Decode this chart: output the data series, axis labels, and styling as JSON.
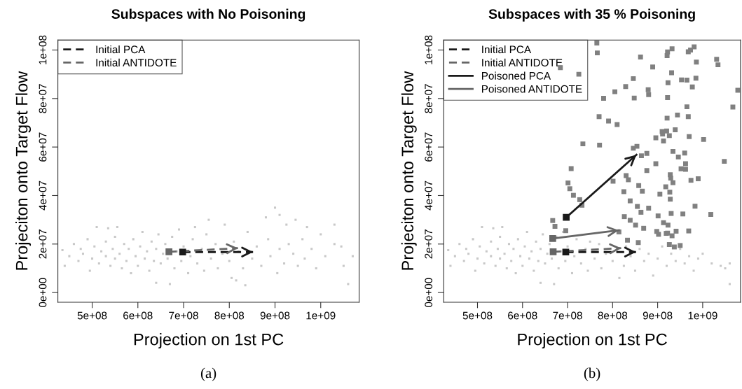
{
  "chart_data": [
    {
      "type": "scatter",
      "title": "Subspaces with No Poisoning",
      "xlabel": "Projection on 1st PC",
      "ylabel": "Projeciton onto Target Flow",
      "annotations": [
        "(a)"
      ],
      "xlim": [
        425000000.0,
        1084000000.0
      ],
      "ylim": [
        -4000000.0,
        104100000.0
      ],
      "xticks": [
        {
          "value": 500000000.0,
          "label": "5e+08"
        },
        {
          "value": 600000000.0,
          "label": "6e+08"
        },
        {
          "value": 700000000.0,
          "label": "7e+08"
        },
        {
          "value": 800000000.0,
          "label": "8e+08"
        },
        {
          "value": 900000000.0,
          "label": "9e+08"
        },
        {
          "value": 1000000000.0,
          "label": "1e+09"
        }
      ],
      "yticks": [
        {
          "value": 0,
          "label": "0e+00"
        },
        {
          "value": 20000000.0,
          "label": "2e+07"
        },
        {
          "value": 40000000.0,
          "label": "4e+07"
        },
        {
          "value": 60000000.0,
          "label": "6e+07"
        },
        {
          "value": 80000000.0,
          "label": "8e+07"
        },
        {
          "value": 100000000.0,
          "label": "1e+08"
        }
      ],
      "grid": false,
      "legend": "top left",
      "series": [
        {
          "marker": "square",
          "color": "#c8c8c8",
          "x": [
            435000000.0,
            440000000.0,
            450000000.0,
            460000000.0,
            470000000.0,
            475000000.0,
            480000000.0,
            490000000.0,
            495000000.0,
            500000000.0,
            505000000.0,
            510000000.0,
            515000000.0,
            520000000.0,
            530000000.0,
            530000000.0,
            535000000.0,
            540000000.0,
            545000000.0,
            550000000.0,
            550000000.0,
            555000000.0,
            560000000.0,
            565000000.0,
            570000000.0,
            575000000.0,
            580000000.0,
            585000000.0,
            590000000.0,
            595000000.0,
            600000000.0,
            605000000.0,
            610000000.0,
            615000000.0,
            620000000.0,
            625000000.0,
            630000000.0,
            635000000.0,
            640000000.0,
            640000000.0,
            645000000.0,
            650000000.0,
            655000000.0,
            660000000.0,
            665000000.0,
            670000000.0,
            675000000.0,
            680000000.0,
            685000000.0,
            690000000.0,
            695000000.0,
            700000000.0,
            710000000.0,
            715000000.0,
            720000000.0,
            725000000.0,
            730000000.0,
            740000000.0,
            745000000.0,
            750000000.0,
            755000000.0,
            760000000.0,
            770000000.0,
            775000000.0,
            785000000.0,
            790000000.0,
            800000000.0,
            805000000.0,
            810000000.0,
            815000000.0,
            820000000.0,
            830000000.0,
            835000000.0,
            840000000.0,
            850000000.0,
            860000000.0,
            870000000.0,
            880000000.0,
            885000000.0,
            890000000.0,
            900000000.0,
            905000000.0,
            910000000.0,
            910000000.0,
            920000000.0,
            925000000.0,
            930000000.0,
            940000000.0,
            945000000.0,
            950000000.0,
            960000000.0,
            965000000.0,
            970000000.0,
            980000000.0,
            990000000.0,
            1000000000.0,
            1010000000.0,
            1030000000.0,
            1030000000.0,
            1045000000.0,
            1050000000.0,
            1060000000.0,
            1070000000.0
          ],
          "values": [
            17500000.0,
            11000000.0,
            15000000.0,
            20000000.0,
            13000000.0,
            18000000.0,
            16000000.0,
            22000000.0,
            9000000.0,
            14000000.0,
            19000000.0,
            27000000.0,
            12000000.0,
            17000000.0,
            15000000.0,
            21000000.0,
            26500000.0,
            11000000.0,
            18000000.0,
            14000000.0,
            23000000.0,
            27000000.0,
            16000000.0,
            10000000.0,
            20000000.0,
            13000000.0,
            18000000.0,
            8000000.0,
            22000000.0,
            15000000.0,
            11000000.0,
            19000000.0,
            25000000.0,
            14000000.0,
            17000000.0,
            9000000.0,
            21000000.0,
            13000000.0,
            4000000.0,
            18000000.0,
            24000000.0,
            12000000.0,
            16000000.0,
            20000000.0,
            14000000.0,
            3500000.0,
            23000000.0,
            10000000.0,
            17000000.0,
            26000000.0,
            13000000.0,
            19000000.0,
            8000000.0,
            15000000.0,
            22000000.0,
            27000000.0,
            12000000.0,
            18000000.0,
            9000000.0,
            24000000.0,
            30000000.0,
            14000000.0,
            20000000.0,
            10000000.0,
            16000000.0,
            28000000.0,
            13000000.0,
            6000000.0,
            21000000.0,
            5000000.0,
            17000000.0,
            10000000.0,
            3000000.0,
            25000000.0,
            14000000.0,
            19000000.0,
            11000000.0,
            31000000.0,
            22000000.0,
            15000000.0,
            35000000.0,
            8000000.0,
            18000000.0,
            32000000.0,
            12000000.0,
            28000000.0,
            20000000.0,
            16000000.0,
            30000000.0,
            11000000.0,
            22000000.0,
            14000000.0,
            27000000.0,
            18000000.0,
            10000000.0,
            24000000.0,
            15000000.0,
            28000000.0,
            20000000.0,
            19000000.0,
            11000000.0,
            3500000.0,
            15000000.0
          ]
        },
        {
          "type": "line",
          "name": "Initial PCA",
          "color": "#1a1a1a",
          "line_style": "dashed",
          "marker": "square",
          "x": [
            698000000.0,
            852000000.0
          ],
          "values": [
            16700000.0,
            16700000.0
          ]
        },
        {
          "type": "line",
          "name": "Initial ANTIDOTE",
          "color": "#666666",
          "line_style": "dashed",
          "marker": "square",
          "x": [
            668000000.0,
            819000000.0
          ],
          "values": [
            16800000.0,
            18300000.0
          ]
        }
      ]
    },
    {
      "type": "scatter",
      "title": "Subspaces with 35 % Poisoning",
      "xlabel": "Projection on 1st PC",
      "ylabel": "Projeciton onto Target Flow",
      "annotations": [
        "(b)"
      ],
      "xlim": [
        425000000.0,
        1084000000.0
      ],
      "ylim": [
        -4000000.0,
        104100000.0
      ],
      "xticks": [
        {
          "value": 500000000.0,
          "label": "5e+08"
        },
        {
          "value": 600000000.0,
          "label": "6e+08"
        },
        {
          "value": 700000000.0,
          "label": "7e+08"
        },
        {
          "value": 800000000.0,
          "label": "8e+08"
        },
        {
          "value": 900000000.0,
          "label": "9e+08"
        },
        {
          "value": 1000000000.0,
          "label": "1e+09"
        }
      ],
      "yticks": [
        {
          "value": 0,
          "label": "0e+00"
        },
        {
          "value": 20000000.0,
          "label": "2e+07"
        },
        {
          "value": 40000000.0,
          "label": "4e+07"
        },
        {
          "value": 60000000.0,
          "label": "6e+07"
        },
        {
          "value": 80000000.0,
          "label": "8e+07"
        },
        {
          "value": 100000000.0,
          "label": "1e+08"
        }
      ],
      "grid": false,
      "legend": "top left",
      "series": [
        {
          "marker": "square",
          "color": "#c8c8c8",
          "x": [
            435000000.0,
            440000000.0,
            450000000.0,
            460000000.0,
            470000000.0,
            475000000.0,
            480000000.0,
            490000000.0,
            495000000.0,
            500000000.0,
            505000000.0,
            510000000.0,
            515000000.0,
            520000000.0,
            530000000.0,
            530000000.0,
            535000000.0,
            540000000.0,
            545000000.0,
            550000000.0,
            550000000.0,
            555000000.0,
            560000000.0,
            565000000.0,
            570000000.0,
            575000000.0,
            580000000.0,
            585000000.0,
            590000000.0,
            595000000.0,
            600000000.0,
            605000000.0,
            610000000.0,
            615000000.0,
            620000000.0,
            625000000.0,
            630000000.0,
            635000000.0,
            640000000.0,
            640000000.0,
            645000000.0,
            650000000.0,
            655000000.0,
            660000000.0,
            665000000.0,
            670000000.0,
            675000000.0,
            680000000.0,
            685000000.0,
            690000000.0,
            695000000.0,
            700000000.0,
            710000000.0,
            715000000.0,
            720000000.0,
            730000000.0,
            740000000.0,
            745000000.0,
            750000000.0,
            760000000.0,
            770000000.0,
            775000000.0,
            785000000.0,
            800000000.0,
            810000000.0,
            815000000.0,
            825000000.0,
            830000000.0,
            840000000.0,
            850000000.0,
            860000000.0,
            870000000.0,
            880000000.0,
            890000000.0,
            900000000.0,
            910000000.0,
            920000000.0,
            930000000.0,
            940000000.0,
            950000000.0,
            960000000.0,
            970000000.0,
            980000000.0,
            990000000.0,
            1000000000.0,
            1020000000.0,
            1040000000.0,
            1050000000.0,
            1060000000.0,
            1060000000.0
          ],
          "values": [
            17500000.0,
            11000000.0,
            15000000.0,
            20000000.0,
            13000000.0,
            18000000.0,
            16000000.0,
            22000000.0,
            9000000.0,
            14000000.0,
            19000000.0,
            27000000.0,
            12000000.0,
            17000000.0,
            15000000.0,
            21000000.0,
            26500000.0,
            11000000.0,
            18000000.0,
            14000000.0,
            23000000.0,
            27000000.0,
            16000000.0,
            10000000.0,
            20000000.0,
            13000000.0,
            18000000.0,
            8000000.0,
            22000000.0,
            15000000.0,
            11000000.0,
            19000000.0,
            25000000.0,
            14000000.0,
            17000000.0,
            9000000.0,
            21000000.0,
            13000000.0,
            4000000.0,
            18000000.0,
            24000000.0,
            12000000.0,
            16000000.0,
            20000000.0,
            14000000.0,
            3500000.0,
            23000000.0,
            10000000.0,
            17000000.0,
            25000000.0,
            13000000.0,
            19000000.0,
            8000000.0,
            15000000.0,
            22000000.0,
            12000000.0,
            18000000.0,
            9000000.0,
            21000000.0,
            14000000.0,
            20000000.0,
            10000000.0,
            16000000.0,
            13000000.0,
            17000000.0,
            6000000.0,
            11000000.0,
            19000000.0,
            15000000.0,
            9000000.0,
            18000000.0,
            13000000.0,
            16000000.0,
            7000000.0,
            14000000.0,
            19000000.0,
            11000000.0,
            16000000.0,
            13000000.0,
            18000000.0,
            12000000.0,
            15000000.0,
            9000000.0,
            14000000.0,
            16000000.0,
            12000000.0,
            11000000.0,
            10000000.0,
            12000000.0,
            3500000.0
          ]
        },
        {
          "marker": "square",
          "color": "#808080",
          "x": [
            765000000.0,
            766000000.0,
            684000000.0,
            725000000.0,
            862000000.0,
            921000000.0,
            922000000.0,
            932000000.0,
            968000000.0,
            973000000.0,
            981000000.0,
            986000000.0,
            1031000000.0,
            1034000000.0,
            889000000.0,
            931000000.0,
            846000000.0,
            829000000.0,
            805000000.0,
            923000000.0,
            953000000.0,
            965000000.0,
            985000000.0,
            977000000.0,
            879000000.0,
            880000000.0,
            922000000.0,
            848000000.0,
            780000000.0,
            1078000000.0,
            1067000000.0,
            965000000.0,
            968000000.0,
            944000000.0,
            921000000.0,
            770000000.0,
            791000000.0,
            810000000.0,
            939000000.0,
            910000000.0,
            920000000.0,
            911000000.0,
            926000000.0,
            896000000.0,
            913000000.0,
            970000000.0,
            1002000000.0,
            734000000.0,
            771000000.0,
            846000000.0,
            854000000.0,
            934000000.0,
            960000000.0,
            946000000.0,
            864000000.0,
            876000000.0,
            1048000000.0,
            896000000.0,
            962000000.0,
            952000000.0,
            962000000.0,
            876000000.0,
            708000000.0,
            928000000.0,
            929000000.0,
            974000000.0,
            990000000.0,
            830000000.0,
            835000000.0,
            801000000.0,
            701000000.0,
            705000000.0,
            713000000.0,
            727000000.0,
            732000000.0,
            825000000.0,
            858000000.0,
            866000000.0,
            934000000.0,
            918000000.0,
            927000000.0,
            905000000.0,
            928000000.0,
            839000000.0,
            855000000.0,
            863000000.0,
            880000000.0,
            983000000.0,
            826000000.0,
            839000000.0,
            851000000.0,
            869000000.0,
            901000000.0,
            930000000.0,
            956000000.0,
            1018000000.0,
            913000000.0,
            923000000.0,
            898000000.0,
            902000000.0,
            919000000.0,
            922000000.0,
            941000000.0,
            932000000.0,
            969000000.0,
            814000000.0,
            833000000.0,
            857000000.0,
            926000000.0,
            937000000.0,
            950000000.0,
            667000000.0,
            672000000.0,
            696000000.0
          ],
          "values": [
            102900000.0,
            98800000.0,
            92700000.0,
            90000000.0,
            97100000.0,
            97700000.0,
            99200000.0,
            100500000.0,
            99300000.0,
            100000000.0,
            101300000.0,
            95000000.0,
            96200000.0,
            93900000.0,
            93000000.0,
            90600000.0,
            88200000.0,
            84900000.0,
            82800000.0,
            86500000.0,
            87700000.0,
            87600000.0,
            88400000.0,
            84800000.0,
            83600000.0,
            81600000.0,
            80400000.0,
            80200000.0,
            80100000.0,
            83400000.0,
            76500000.0,
            76600000.0,
            72500000.0,
            73200000.0,
            71900000.0,
            72500000.0,
            70700000.0,
            69300000.0,
            67100000.0,
            66400000.0,
            66600000.0,
            65400000.0,
            64700000.0,
            63800000.0,
            62500000.0,
            64300000.0,
            63100000.0,
            61300000.0,
            60800000.0,
            59500000.0,
            60300000.0,
            58200000.0,
            57500000.0,
            55900000.0,
            56400000.0,
            57400000.0,
            54100000.0,
            53100000.0,
            53100000.0,
            51000000.0,
            50800000.0,
            50300000.0,
            51100000.0,
            48600000.0,
            47200000.0,
            46300000.0,
            46900000.0,
            48200000.0,
            46500000.0,
            45900000.0,
            45200000.0,
            42800000.0,
            40100000.0,
            38300000.0,
            36000000.0,
            41600000.0,
            44100000.0,
            41800000.0,
            45300000.0,
            43600000.0,
            41400000.0,
            40600000.0,
            38500000.0,
            37800000.0,
            35500000.0,
            33100000.0,
            34800000.0,
            35600000.0,
            31300000.0,
            29800000.0,
            27800000.0,
            26500000.0,
            31600000.0,
            32600000.0,
            32400000.0,
            32200000.0,
            28800000.0,
            27800000.0,
            25200000.0,
            24000000.0,
            24400000.0,
            24500000.0,
            25300000.0,
            23400000.0,
            25400000.0,
            25000000.0,
            21600000.0,
            20600000.0,
            19800000.0,
            18800000.0,
            19400000.0,
            29700000.0,
            27300000.0,
            25500000.0
          ]
        },
        {
          "type": "line",
          "name": "Initial PCA",
          "color": "#1a1a1a",
          "line_style": "dashed",
          "marker": "square",
          "x": [
            696000000.0,
            852000000.0
          ],
          "values": [
            16700000.0,
            16700000.0
          ]
        },
        {
          "type": "line",
          "name": "Initial ANTIDOTE",
          "color": "#666666",
          "line_style": "dashed",
          "marker": "square",
          "x": [
            668000000.0,
            819000000.0
          ],
          "values": [
            16800000.0,
            18300000.0
          ]
        },
        {
          "type": "line",
          "name": "Poisoned PCA",
          "color": "#1a1a1a",
          "line_style": "solid",
          "marker": "square",
          "x": [
            697000000.0,
            853000000.0
          ],
          "values": [
            31000000.0,
            56800000.0
          ]
        },
        {
          "type": "line",
          "name": "Poisoned ANTIDOTE",
          "color": "#666666",
          "line_style": "solid",
          "marker": "square",
          "x": [
            667000000.0,
            814000000.0
          ],
          "values": [
            22300000.0,
            25700000.0
          ]
        }
      ]
    }
  ]
}
